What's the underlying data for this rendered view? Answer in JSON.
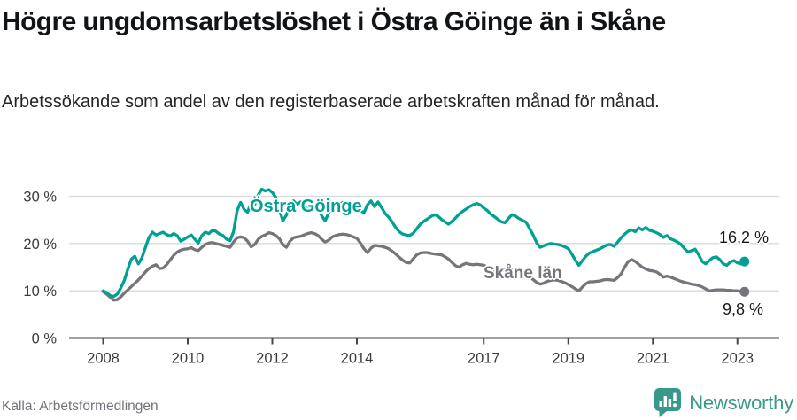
{
  "header": {
    "title": "Högre ungdomsarbetslöshet i Östra Göinge än i Skåne",
    "subtitle": "Arbetssökande som andel av den registerbaserade arbetskraften månad för månad."
  },
  "footer": {
    "source": "Källa: Arbetsförmedlingen",
    "brand": "Newsworthy"
  },
  "colors": {
    "accent_teal": "#00a192",
    "line_gray": "#75757b",
    "axis": "#454545",
    "grid": "#d9d9d9",
    "tick_text": "#3b3b3b",
    "logo_teal": "#38988a",
    "value_text": "#1a1a1a"
  },
  "chart_data": {
    "type": "line",
    "title": "Högre ungdomsarbetslöshet i Östra Göinge än i Skåne",
    "subtitle": "Arbetssökande som andel av den registerbaserade arbetskraften månad för månad.",
    "unit": "%",
    "xlabel": "",
    "ylabel": "",
    "grid": "horizontal",
    "legend_position": "inline-labels",
    "x_start_year": 2008,
    "x_step_months": 1,
    "x_end": "2023-03",
    "xlim": [
      2007.85,
      2023.97
    ],
    "ylim": [
      0,
      33
    ],
    "x_ticks": [
      2008,
      2010,
      2012,
      2014,
      2017,
      2019,
      2021,
      2023
    ],
    "x_tick_labels": [
      "2008",
      "2010",
      "2012",
      "2014",
      "2017",
      "2019",
      "2021",
      "2023"
    ],
    "y_ticks": [
      0,
      10,
      20,
      30
    ],
    "y_tick_labels": [
      "0 %",
      "10 %",
      "20 %",
      "30 %"
    ],
    "series": [
      {
        "name": "Östra Göinge",
        "color": "#00a192",
        "end_label": "16,2 %",
        "end_value": 16.2,
        "values": [
          10.0,
          9.6,
          9.0,
          8.8,
          9.3,
          10.6,
          12.2,
          14.6,
          16.7,
          17.3,
          15.7,
          17.0,
          19.2,
          21.3,
          22.4,
          21.8,
          22.1,
          22.4,
          21.9,
          21.6,
          22.1,
          21.7,
          20.5,
          20.9,
          21.4,
          21.8,
          20.9,
          20.1,
          21.7,
          22.4,
          22.1,
          22.8,
          22.6,
          22.0,
          21.7,
          20.9,
          20.6,
          22.5,
          26.9,
          28.7,
          27.2,
          26.6,
          28.7,
          28.2,
          30.3,
          31.5,
          31.1,
          31.4,
          30.8,
          29.7,
          27.2,
          24.8,
          26.0,
          28.2,
          29.0,
          28.3,
          28.8,
          28.0,
          27.6,
          28.2,
          27.8,
          27.3,
          25.9,
          24.8,
          26.5,
          27.9,
          28.4,
          28.1,
          28.7,
          28.3,
          27.9,
          27.7,
          27.5,
          27.0,
          26.5,
          28.2,
          29.0,
          27.8,
          28.8,
          27.6,
          26.4,
          25.6,
          24.6,
          23.4,
          22.5,
          22.0,
          21.8,
          21.7,
          22.2,
          23.1,
          24.1,
          24.7,
          25.2,
          25.7,
          26.1,
          25.8,
          25.1,
          24.6,
          24.1,
          24.7,
          25.4,
          26.2,
          26.8,
          27.3,
          27.8,
          28.2,
          28.5,
          28.2,
          27.5,
          27.0,
          26.2,
          25.7,
          25.1,
          24.6,
          24.4,
          25.3,
          26.1,
          25.8,
          25.3,
          24.9,
          24.5,
          23.2,
          21.8,
          20.2,
          19.2,
          19.5,
          19.8,
          20.0,
          19.9,
          19.8,
          19.6,
          19.3,
          18.9,
          17.8,
          16.5,
          15.4,
          16.4,
          17.3,
          18.0,
          18.3,
          18.6,
          18.9,
          19.3,
          19.7,
          19.8,
          19.4,
          20.3,
          21.2,
          22.0,
          22.6,
          22.9,
          22.5,
          23.3,
          22.9,
          23.4,
          22.8,
          22.6,
          22.3,
          21.9,
          21.3,
          21.7,
          21.0,
          20.7,
          20.3,
          19.8,
          18.9,
          18.2,
          18.5,
          18.8,
          17.6,
          16.2,
          15.7,
          16.4,
          17.0,
          17.2,
          16.6,
          15.7,
          15.4,
          16.1,
          16.4,
          15.9,
          15.7,
          16.2
        ]
      },
      {
        "name": "Skåne län",
        "color": "#75757b",
        "end_label": "9,8 %",
        "end_value": 9.8,
        "values": [
          9.8,
          9.3,
          8.6,
          8.0,
          8.1,
          8.7,
          9.5,
          10.2,
          10.9,
          11.6,
          12.3,
          13.1,
          14.0,
          14.7,
          15.2,
          15.5,
          14.7,
          14.8,
          15.5,
          16.5,
          17.5,
          18.2,
          18.6,
          18.8,
          18.9,
          19.1,
          18.7,
          18.5,
          19.2,
          19.8,
          20.1,
          20.2,
          20.0,
          19.8,
          19.6,
          19.4,
          19.2,
          20.3,
          21.2,
          21.4,
          21.2,
          20.5,
          19.3,
          19.8,
          20.9,
          21.5,
          21.8,
          22.3,
          22.1,
          21.7,
          21.0,
          19.8,
          19.2,
          20.5,
          21.2,
          21.4,
          21.5,
          21.8,
          22.1,
          22.3,
          22.1,
          21.7,
          20.9,
          20.3,
          20.7,
          21.4,
          21.7,
          21.9,
          22.0,
          21.9,
          21.7,
          21.4,
          21.1,
          20.1,
          18.9,
          18.1,
          19.0,
          19.6,
          19.5,
          19.4,
          19.2,
          18.9,
          18.4,
          17.8,
          17.1,
          16.5,
          16.0,
          15.9,
          16.8,
          17.6,
          18.0,
          18.1,
          18.1,
          17.9,
          17.8,
          17.7,
          17.6,
          17.2,
          16.7,
          16.0,
          15.3,
          15.0,
          15.5,
          15.8,
          15.6,
          15.5,
          15.6,
          15.5,
          15.4,
          15.1,
          14.7,
          14.3,
          14.0,
          14.2,
          14.5,
          14.6,
          14.4,
          14.2,
          14.0,
          13.8,
          13.5,
          13.0,
          12.4,
          11.8,
          11.4,
          11.6,
          12.0,
          12.2,
          12.3,
          12.2,
          12.0,
          11.7,
          11.3,
          10.9,
          10.4,
          10.0,
          10.8,
          11.5,
          11.9,
          11.9,
          12.0,
          12.1,
          12.3,
          12.4,
          12.3,
          12.2,
          12.8,
          13.6,
          15.0,
          16.2,
          16.6,
          16.2,
          15.6,
          15.0,
          14.6,
          14.3,
          14.2,
          14.0,
          13.5,
          12.9,
          13.1,
          12.9,
          12.6,
          12.3,
          12.0,
          11.8,
          11.6,
          11.4,
          11.3,
          11.1,
          10.8,
          10.4,
          10.0,
          10.1,
          10.2,
          10.2,
          10.2,
          10.1,
          10.1,
          10.0,
          10.0,
          9.9,
          9.8
        ]
      }
    ]
  }
}
